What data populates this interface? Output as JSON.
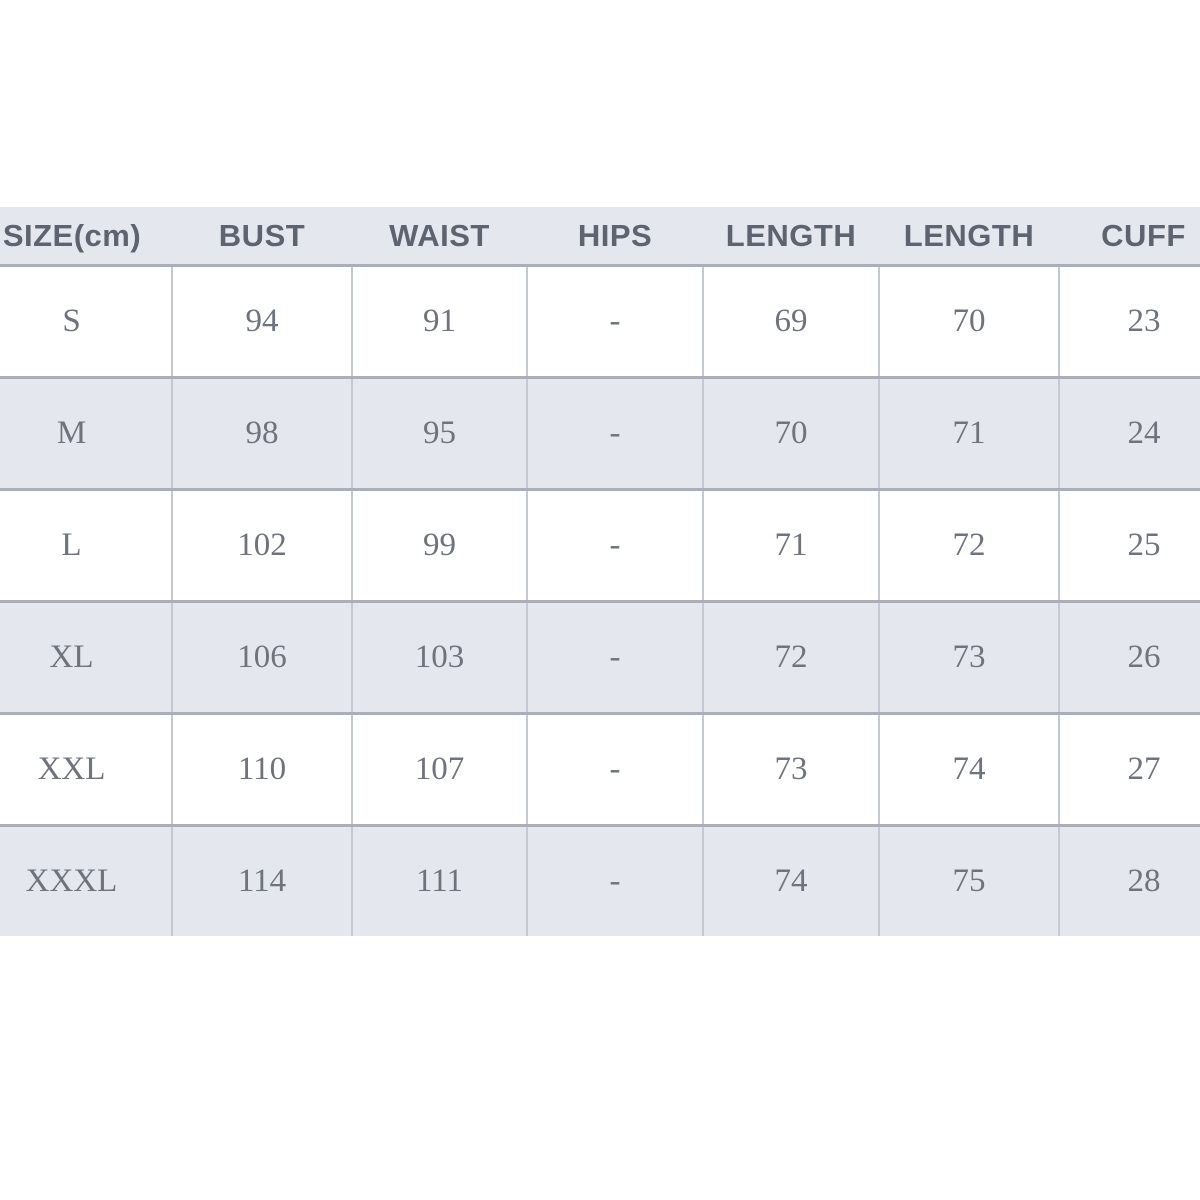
{
  "page": {
    "background_color": "#ffffff"
  },
  "size_chart": {
    "headers": [
      "SIZE(cm)",
      "BUST",
      "WAIST",
      "HIPS",
      "LENGTH",
      "LENGTH",
      "CUFF"
    ],
    "rows": [
      [
        "S",
        "94",
        "91",
        "-",
        "69",
        "70",
        "23"
      ],
      [
        "M",
        "98",
        "95",
        "-",
        "70",
        "71",
        "24"
      ],
      [
        "L",
        "102",
        "99",
        "-",
        "71",
        "72",
        "25"
      ],
      [
        "XL",
        "106",
        "103",
        "-",
        "72",
        "73",
        "26"
      ],
      [
        "XXL",
        "110",
        "107",
        "-",
        "73",
        "74",
        "27"
      ],
      [
        "XXXL",
        "114",
        "111",
        "-",
        "74",
        "75",
        "28"
      ]
    ],
    "colors": {
      "header_bg": "#e4e8ee",
      "stripe_row_bg": "#e4e8ee",
      "plain_row_bg": "#ffffff",
      "row_border": "#a9aeb9",
      "column_border": "#c3c8d3",
      "header_text": "#5d6370",
      "cell_text": "#6e737e"
    }
  },
  "chart_data": {
    "type": "table",
    "title": "Garment size chart (cm)",
    "columns": [
      "SIZE(cm)",
      "BUST",
      "WAIST",
      "HIPS",
      "LENGTH",
      "LENGTH",
      "CUFF"
    ],
    "rows": [
      [
        "S",
        94,
        91,
        null,
        69,
        70,
        23
      ],
      [
        "M",
        98,
        95,
        null,
        70,
        71,
        24
      ],
      [
        "L",
        102,
        99,
        null,
        71,
        72,
        25
      ],
      [
        "XL",
        106,
        103,
        null,
        72,
        73,
        26
      ],
      [
        "XXL",
        110,
        107,
        null,
        73,
        74,
        27
      ],
      [
        "XXXL",
        114,
        111,
        null,
        74,
        75,
        28
      ]
    ],
    "layout_hints": {
      "striped_rows": true,
      "header_background": "#e4e8ee",
      "cropped_left_and_right": true,
      "hips_column_empty_marker": "-"
    }
  }
}
